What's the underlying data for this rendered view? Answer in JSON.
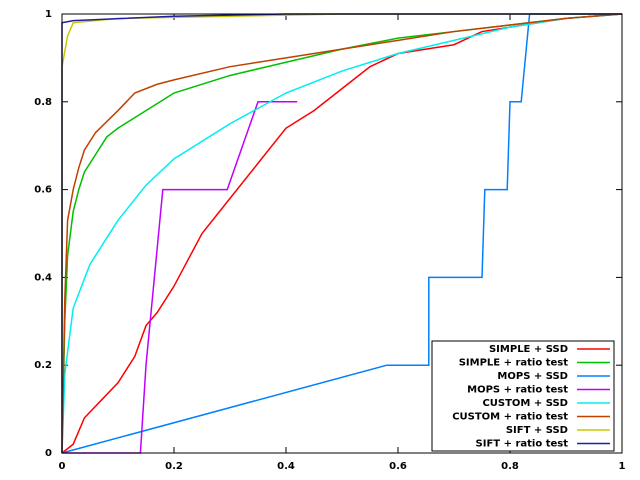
{
  "chart_data": {
    "type": "line",
    "xlim": [
      0,
      1
    ],
    "ylim": [
      0,
      1
    ],
    "xticks": [
      0,
      0.2,
      0.4,
      0.6,
      0.8,
      1
    ],
    "yticks": [
      0,
      0.2,
      0.4,
      0.6,
      0.8,
      1
    ],
    "grid": false,
    "legend": "bottom-right",
    "series": [
      {
        "name": "SIMPLE + SSD",
        "color": "#ff0000",
        "x": [
          0,
          0.02,
          0.04,
          0.07,
          0.1,
          0.13,
          0.15,
          0.17,
          0.2,
          0.25,
          0.3,
          0.35,
          0.4,
          0.45,
          0.5,
          0.55,
          0.6,
          0.7,
          0.75,
          0.8,
          0.9,
          1
        ],
        "values": [
          0,
          0.02,
          0.08,
          0.12,
          0.16,
          0.22,
          0.29,
          0.32,
          0.38,
          0.5,
          0.58,
          0.66,
          0.74,
          0.78,
          0.83,
          0.88,
          0.91,
          0.93,
          0.96,
          0.97,
          0.99,
          1
        ]
      },
      {
        "name": "SIMPLE + ratio test",
        "color": "#00c000",
        "x": [
          0,
          0.005,
          0.01,
          0.02,
          0.03,
          0.04,
          0.06,
          0.08,
          0.1,
          0.15,
          0.2,
          0.3,
          0.4,
          0.5,
          0.6,
          0.7,
          0.8,
          0.9,
          1
        ],
        "values": [
          0,
          0.3,
          0.45,
          0.55,
          0.6,
          0.64,
          0.68,
          0.72,
          0.74,
          0.78,
          0.82,
          0.86,
          0.89,
          0.92,
          0.945,
          0.96,
          0.975,
          0.99,
          1
        ]
      },
      {
        "name": "MOPS + SSD",
        "color": "#0080ff",
        "x": [
          0,
          0.58,
          0.655,
          0.655,
          0.75,
          0.755,
          0.795,
          0.8,
          0.82,
          0.835,
          1
        ],
        "values": [
          0,
          0.2,
          0.2,
          0.4,
          0.4,
          0.6,
          0.6,
          0.8,
          0.8,
          1,
          1
        ]
      },
      {
        "name": "MOPS + ratio test",
        "color": "#c000ff",
        "x": [
          0,
          0.14,
          0.15,
          0.165,
          0.18,
          0.295,
          0.35,
          0.42
        ],
        "values": [
          0,
          0,
          0.2,
          0.4,
          0.6,
          0.6,
          0.8,
          0.8
        ]
      },
      {
        "name": "CUSTOM + SSD",
        "color": "#00eeee",
        "x": [
          0,
          0.005,
          0.02,
          0.05,
          0.1,
          0.15,
          0.2,
          0.3,
          0.4,
          0.5,
          0.6,
          0.7,
          0.8,
          0.9,
          1
        ],
        "values": [
          0,
          0.18,
          0.33,
          0.43,
          0.53,
          0.61,
          0.67,
          0.75,
          0.82,
          0.87,
          0.91,
          0.94,
          0.97,
          0.99,
          1
        ]
      },
      {
        "name": "CUSTOM + ratio test",
        "color": "#c04000",
        "x": [
          0,
          0.005,
          0.01,
          0.02,
          0.03,
          0.04,
          0.06,
          0.1,
          0.13,
          0.17,
          0.2,
          0.3,
          0.4,
          0.5,
          0.6,
          0.7,
          0.8,
          0.9,
          1
        ],
        "values": [
          0,
          0.35,
          0.53,
          0.6,
          0.65,
          0.69,
          0.73,
          0.78,
          0.82,
          0.84,
          0.85,
          0.88,
          0.9,
          0.92,
          0.94,
          0.96,
          0.975,
          0.99,
          1
        ]
      },
      {
        "name": "SIFT + SSD",
        "color": "#c8c800",
        "x": [
          0,
          0,
          0.01,
          0.02,
          0.1,
          0.5,
          1
        ],
        "values": [
          0,
          0.88,
          0.95,
          0.98,
          0.99,
          1,
          1
        ]
      },
      {
        "name": "SIFT + ratio test",
        "color": "#2020a0",
        "x": [
          0,
          0,
          0.02,
          0.2,
          0.4,
          1
        ],
        "values": [
          0,
          0.98,
          0.985,
          0.995,
          1,
          1
        ]
      }
    ]
  }
}
